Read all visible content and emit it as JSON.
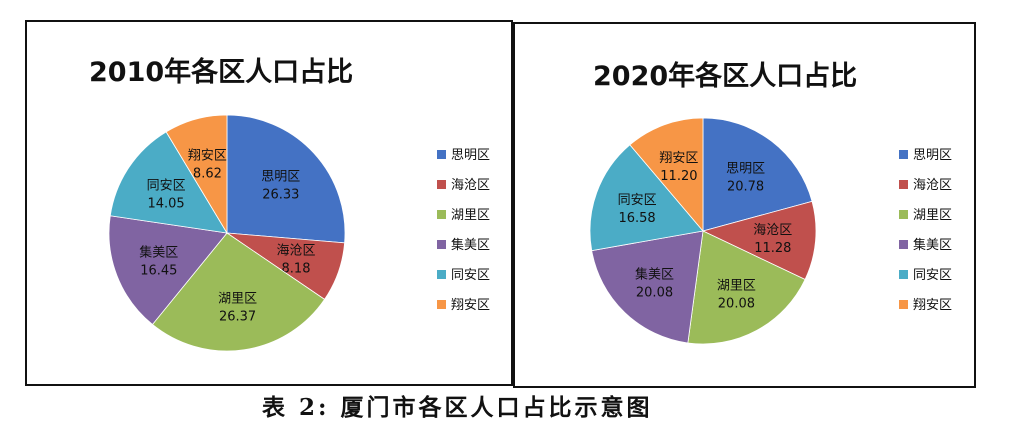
{
  "caption": "表 2: 厦门市各区人口占比示意图",
  "chart_data": [
    {
      "type": "pie",
      "title": "2010年各区人口占比",
      "categories": [
        "思明区",
        "海沧区",
        "湖里区",
        "集美区",
        "同安区",
        "翔安区"
      ],
      "values": [
        26.33,
        8.18,
        26.37,
        16.45,
        14.05,
        8.62
      ],
      "colors": [
        "#4472C4",
        "#C0504D",
        "#9BBB59",
        "#8064A2",
        "#4BACC6",
        "#F79646"
      ],
      "legend": "right"
    },
    {
      "type": "pie",
      "title": "2020年各区人口占比",
      "categories": [
        "思明区",
        "海沧区",
        "湖里区",
        "集美区",
        "同安区",
        "翔安区"
      ],
      "values": [
        20.78,
        11.28,
        20.08,
        20.08,
        16.58,
        11.2
      ],
      "colors": [
        "#4472C4",
        "#C0504D",
        "#9BBB59",
        "#8064A2",
        "#4BACC6",
        "#F79646"
      ],
      "legend": "right"
    }
  ]
}
